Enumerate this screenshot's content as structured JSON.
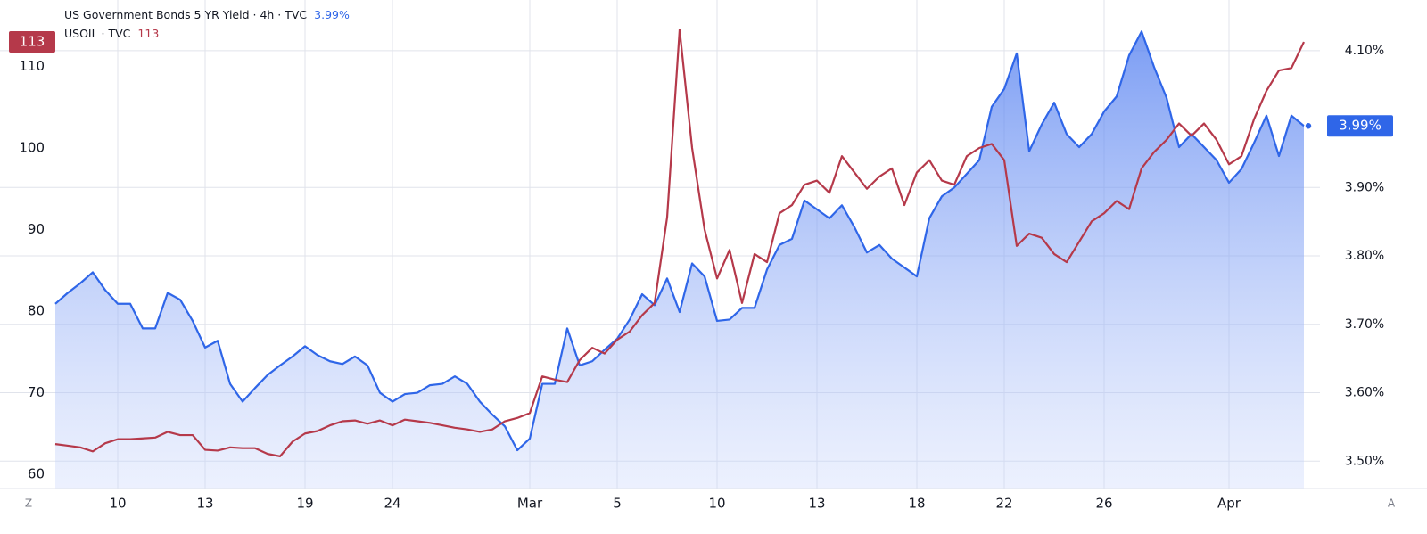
{
  "chart_data": {
    "type": "line",
    "categories": [
      null,
      null,
      null,
      null,
      null,
      "10",
      null,
      null,
      null,
      null,
      null,
      null,
      "13",
      null,
      null,
      null,
      null,
      null,
      null,
      null,
      "19",
      null,
      null,
      null,
      null,
      null,
      null,
      "24",
      null,
      null,
      null,
      null,
      null,
      null,
      null,
      null,
      null,
      null,
      "Mar",
      null,
      null,
      null,
      null,
      null,
      null,
      "5",
      null,
      null,
      null,
      null,
      null,
      null,
      null,
      "10",
      null,
      null,
      null,
      null,
      null,
      null,
      null,
      "13",
      null,
      null,
      null,
      null,
      null,
      null,
      null,
      "18",
      null,
      null,
      null,
      null,
      null,
      null,
      "22",
      null,
      null,
      null,
      null,
      null,
      null,
      null,
      "26",
      null,
      null,
      null,
      null,
      null,
      null,
      null,
      null,
      null,
      "Apr",
      null,
      null,
      null,
      null,
      null,
      null
    ],
    "series": [
      {
        "name": "US Government Bonds 5 YR Yield · 4h · TVC",
        "color": "#2f66e8",
        "axis": "y2",
        "area": true,
        "last_label": "3.99%",
        "values": [
          3.73,
          3.746,
          3.76,
          3.776,
          3.75,
          3.73,
          3.73,
          3.694,
          3.694,
          3.746,
          3.736,
          3.705,
          3.666,
          3.676,
          3.613,
          3.587,
          3.607,
          3.626,
          3.64,
          3.653,
          3.668,
          3.655,
          3.646,
          3.642,
          3.653,
          3.64,
          3.6,
          3.587,
          3.598,
          3.6,
          3.611,
          3.613,
          3.624,
          3.613,
          3.587,
          3.568,
          3.551,
          3.516,
          3.533,
          3.613,
          3.613,
          3.694,
          3.64,
          3.646,
          3.663,
          3.679,
          3.707,
          3.744,
          3.728,
          3.767,
          3.718,
          3.789,
          3.77,
          3.705,
          3.707,
          3.724,
          3.724,
          3.78,
          3.816,
          3.825,
          3.881,
          3.868,
          3.855,
          3.874,
          3.842,
          3.805,
          3.816,
          3.796,
          3.783,
          3.77,
          3.855,
          3.887,
          3.9,
          3.92,
          3.94,
          4.018,
          4.044,
          4.096,
          3.953,
          3.992,
          4.024,
          3.978,
          3.959,
          3.978,
          4.011,
          4.033,
          4.093,
          4.128,
          4.076,
          4.031,
          3.959,
          3.978,
          3.959,
          3.94,
          3.907,
          3.927,
          3.965,
          4.005,
          3.946,
          4.005,
          3.99
        ]
      },
      {
        "name": "USOIL · TVC",
        "color": "#b5394a",
        "axis": "y",
        "values": [
          63.7,
          63.5,
          63.3,
          62.8,
          63.8,
          64.3,
          64.3,
          64.4,
          64.5,
          65.2,
          64.8,
          64.8,
          63.0,
          62.9,
          63.3,
          63.2,
          63.2,
          62.5,
          62.2,
          64.0,
          65.0,
          65.3,
          66.0,
          66.5,
          66.6,
          66.2,
          66.6,
          66.0,
          66.7,
          66.5,
          66.3,
          66.0,
          65.7,
          65.5,
          65.2,
          65.5,
          66.5,
          66.9,
          67.5,
          72.0,
          71.6,
          71.3,
          74.0,
          75.5,
          74.8,
          76.5,
          77.5,
          79.5,
          81.0,
          91.5,
          114.5,
          100.0,
          90.0,
          84.0,
          87.5,
          81.0,
          87.0,
          86.0,
          92.0,
          93.0,
          95.5,
          96.0,
          94.5,
          99.0,
          97.0,
          95.0,
          96.5,
          97.5,
          93.0,
          97.0,
          98.5,
          96.0,
          95.5,
          99.0,
          100.0,
          100.5,
          98.5,
          88.0,
          89.5,
          89.0,
          87.0,
          86.0,
          88.5,
          91.0,
          92.0,
          93.5,
          92.5,
          97.5,
          99.5,
          101.0,
          103.0,
          101.5,
          103.0,
          101.0,
          98.0,
          99.0,
          103.5,
          107.0,
          109.5,
          109.8,
          113
        ]
      }
    ],
    "ylim": [
      58.25,
      117.05
    ],
    "yticks": [
      60,
      70,
      80,
      90,
      100,
      110
    ],
    "y2lim": [
      3.46,
      4.161
    ],
    "y2ticks": [
      {
        "value": 3.5,
        "label": "3.50%"
      },
      {
        "value": 3.6,
        "label": "3.60%"
      },
      {
        "value": 3.7,
        "label": "3.70%"
      },
      {
        "value": 3.8,
        "label": "3.80%"
      },
      {
        "value": 3.9,
        "label": "3.90%"
      },
      {
        "value": 4.1,
        "label": "4.10%"
      }
    ],
    "grid": true
  },
  "controls": {
    "left": "Z",
    "right": "A"
  }
}
